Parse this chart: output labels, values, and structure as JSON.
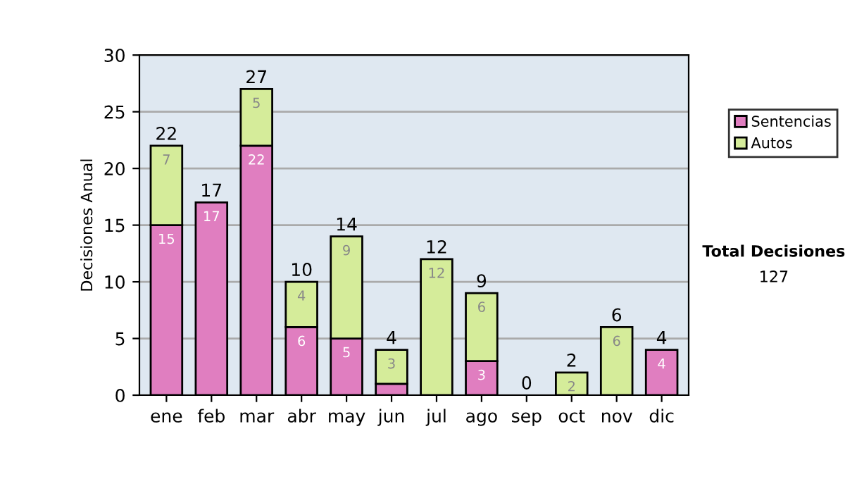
{
  "chart_data": {
    "type": "bar",
    "stacked": true,
    "ylabel": "Decisiones Anual",
    "categories": [
      "ene",
      "feb",
      "mar",
      "abr",
      "may",
      "jun",
      "jul",
      "ago",
      "sep",
      "oct",
      "nov",
      "dic"
    ],
    "series": [
      {
        "name": "Sentencias",
        "color": "#e07ec0",
        "values": [
          15,
          17,
          22,
          6,
          5,
          1,
          0,
          3,
          0,
          0,
          0,
          4
        ],
        "value_labels": [
          "15",
          "17",
          "22",
          "6",
          "5",
          null,
          null,
          "3",
          null,
          null,
          null,
          "4"
        ]
      },
      {
        "name": "Autos",
        "color": "#d5ec9a",
        "values": [
          7,
          0,
          5,
          4,
          9,
          3,
          12,
          6,
          0,
          2,
          6,
          0
        ],
        "value_labels": [
          "7",
          null,
          "5",
          "4",
          "9",
          "3",
          "12",
          "6",
          null,
          "2",
          "6",
          null
        ]
      }
    ],
    "totals": [
      "22",
      "17",
      "27",
      "10",
      "14",
      "4",
      "12",
      "9",
      "0",
      "2",
      "6",
      "4"
    ],
    "ylim": [
      0,
      30
    ],
    "yticks": [
      0,
      5,
      10,
      15,
      20,
      25,
      30
    ],
    "grid": "y",
    "legend": "right",
    "annotations": [
      "Total Decisiones",
      "127"
    ]
  }
}
